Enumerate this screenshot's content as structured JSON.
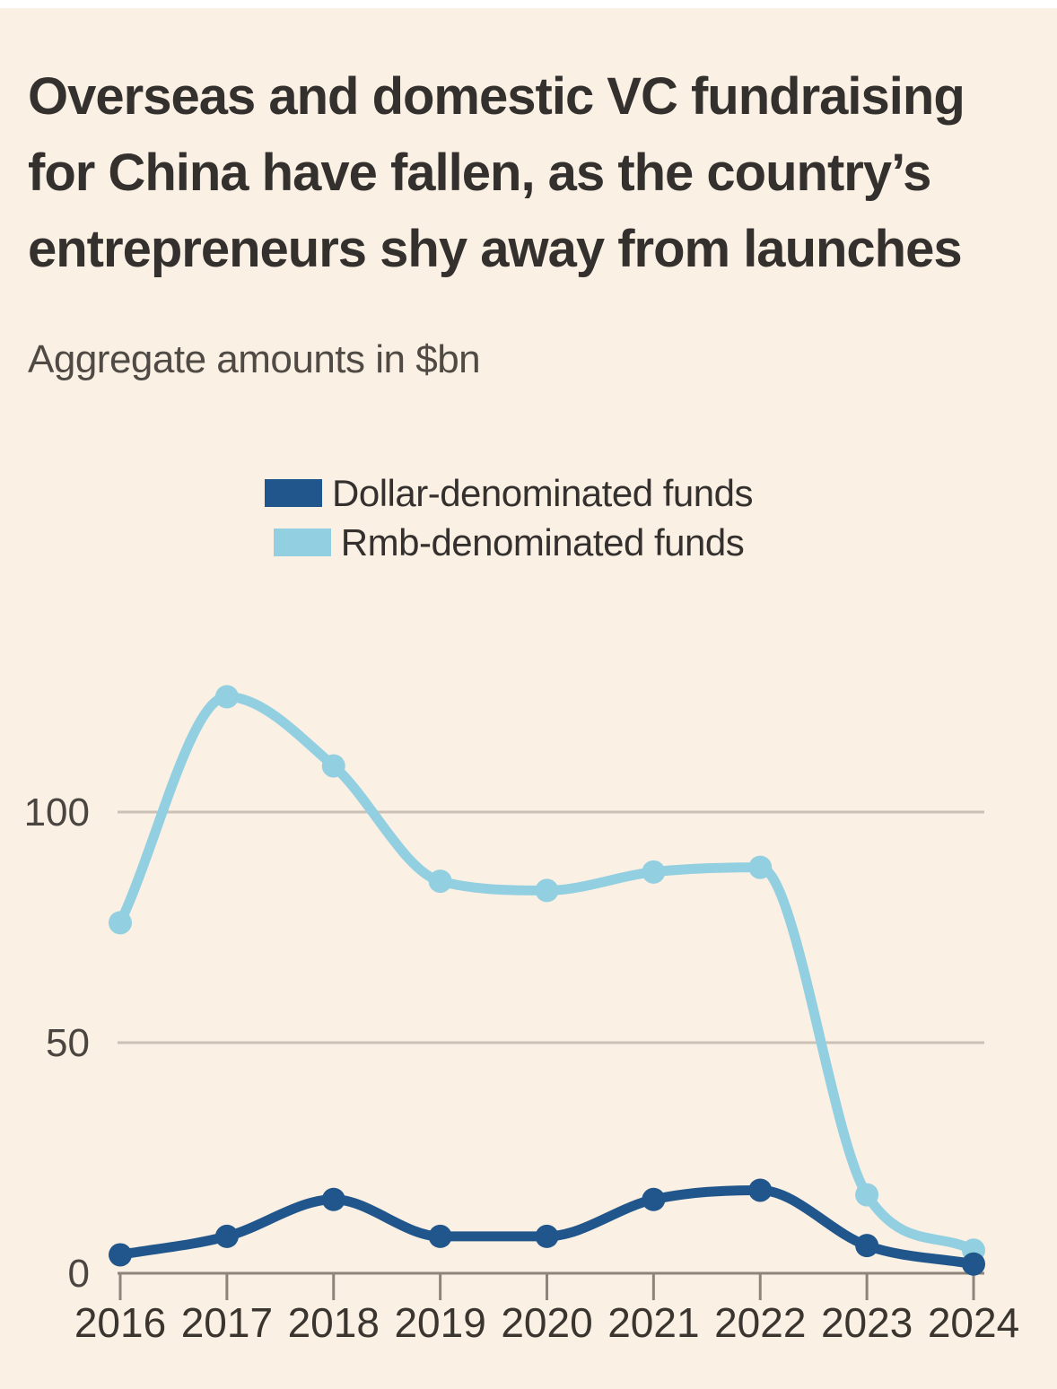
{
  "page": {
    "background_color": "#FBF0E4",
    "top_strip_color": "#FFFFFF"
  },
  "title": "Overseas and domestic VC fundraising for China have fallen, as the country’s entrepreneurs shy away from launches",
  "subtitle": "Aggregate amounts in $bn",
  "legend": {
    "items": [
      {
        "label": "Dollar-denominated funds",
        "color": "#20568B"
      },
      {
        "label": "Rmb-denominated funds",
        "color": "#92D0E1"
      }
    ]
  },
  "chart_data": {
    "type": "line",
    "title": "Overseas and domestic VC fundraising for China have fallen, as the country’s entrepreneurs shy away from launches",
    "subtitle": "Aggregate amounts in $bn",
    "xlabel": "",
    "ylabel": "Aggregate amounts in $bn",
    "x": [
      2016,
      2017,
      2018,
      2019,
      2020,
      2021,
      2022,
      2023,
      2024
    ],
    "series": [
      {
        "name": "Rmb-denominated funds",
        "color": "#92D0E1",
        "values": [
          76,
          125,
          110,
          85,
          83,
          87,
          88,
          17,
          5
        ]
      },
      {
        "name": "Dollar-denominated funds",
        "color": "#20568B",
        "values": [
          4,
          8,
          16,
          8,
          8,
          16,
          18,
          6,
          2
        ]
      }
    ],
    "y_ticks": [
      0,
      50,
      100
    ],
    "ylim": [
      0,
      132
    ],
    "grid": "horizontal",
    "legend_position": "top-center",
    "marker": "circle",
    "curve": "smooth-monotone",
    "colors": {
      "gridline": "#CCC1B6",
      "axis_line": "#8E847A",
      "y_tick_label": "#4A4540",
      "x_tick_label": "#3A352F"
    }
  }
}
